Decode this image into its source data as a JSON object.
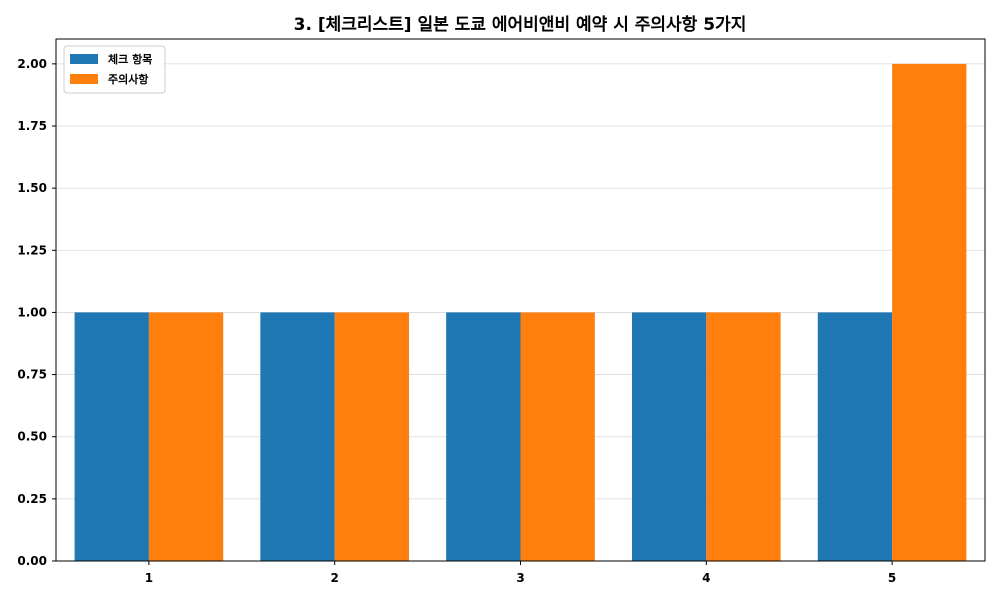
{
  "chart_data": {
    "type": "bar",
    "title": "3. [체크리스트] 일본 도쿄 에어비앤비 예약 시 주의사항 5가지",
    "xlabel": "",
    "ylabel": "",
    "categories": [
      "1",
      "2",
      "3",
      "4",
      "5"
    ],
    "series": [
      {
        "name": "체크 항목",
        "values": [
          1,
          1,
          1,
          1,
          1
        ],
        "color": "#1f77b4"
      },
      {
        "name": "주의사항",
        "values": [
          1,
          1,
          1,
          1,
          2
        ],
        "color": "#ff7f0e"
      }
    ],
    "ylim": [
      0,
      2.1
    ],
    "yticks": [
      "0.00",
      "0.25",
      "0.50",
      "0.75",
      "1.00",
      "1.25",
      "1.50",
      "1.75",
      "2.00"
    ],
    "grid": "horizontal",
    "legend_position": "top-left"
  }
}
